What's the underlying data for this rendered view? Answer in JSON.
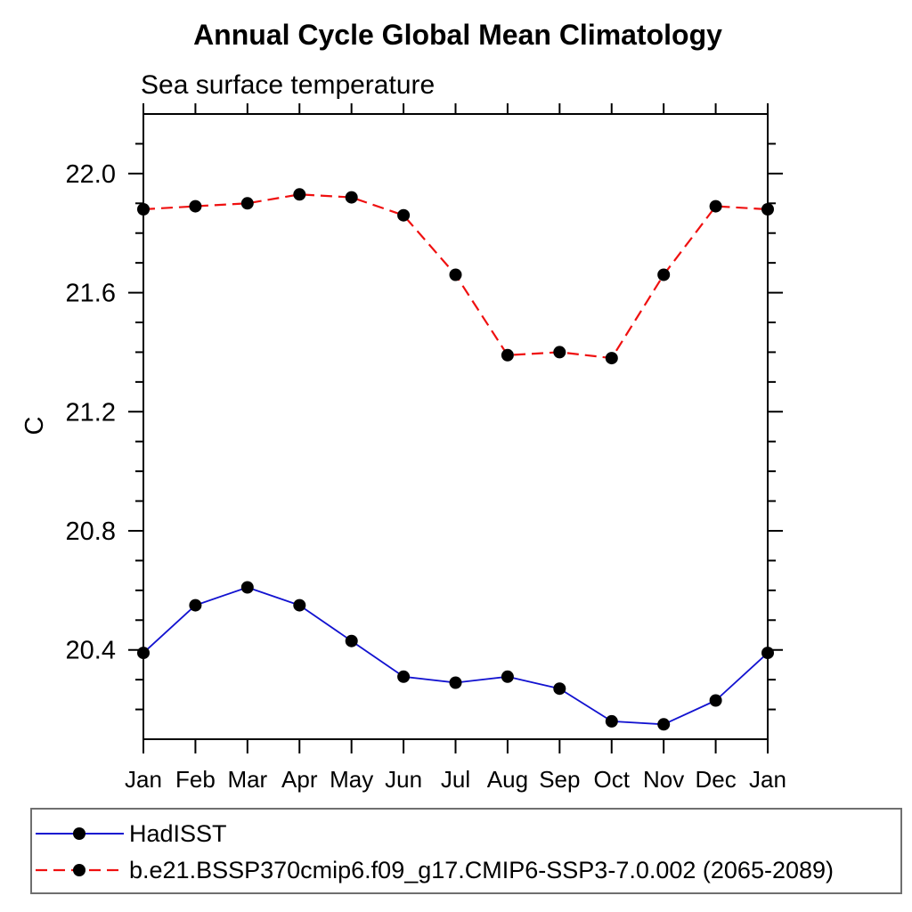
{
  "chart_data": {
    "type": "line",
    "title": "Annual Cycle Global Mean Climatology",
    "subtitle": "Sea surface temperature",
    "ylabel": "C",
    "xlabel": "",
    "categories": [
      "Jan",
      "Feb",
      "Mar",
      "Apr",
      "May",
      "Jun",
      "Jul",
      "Aug",
      "Sep",
      "Oct",
      "Nov",
      "Dec",
      "Jan"
    ],
    "ylim": [
      20.1,
      22.2
    ],
    "y_major_ticks": [
      20.4,
      20.8,
      21.2,
      21.6,
      22.0
    ],
    "y_tick_labels": [
      "20.4",
      "20.8",
      "21.2",
      "21.6",
      "22.0"
    ],
    "y_minor_step": 0.1,
    "grid": false,
    "legend_position": "bottom-left-box",
    "series": [
      {
        "name": "HadISST",
        "color": "#1212d0",
        "line_style": "solid",
        "marker": "filled-circle",
        "marker_color": "#000000",
        "values": [
          20.39,
          20.55,
          20.61,
          20.55,
          20.43,
          20.31,
          20.29,
          20.31,
          20.27,
          20.16,
          20.15,
          20.23,
          20.39
        ]
      },
      {
        "name": "b.e21.BSSP370cmip6.f09_g17.CMIP6-SSP3-7.0.002 (2065-2089)",
        "color": "#ef1010",
        "line_style": "dashed",
        "marker": "filled-circle",
        "marker_color": "#000000",
        "values": [
          21.88,
          21.89,
          21.9,
          21.93,
          21.92,
          21.86,
          21.66,
          21.39,
          21.4,
          21.38,
          21.66,
          21.89,
          21.88
        ]
      }
    ]
  }
}
